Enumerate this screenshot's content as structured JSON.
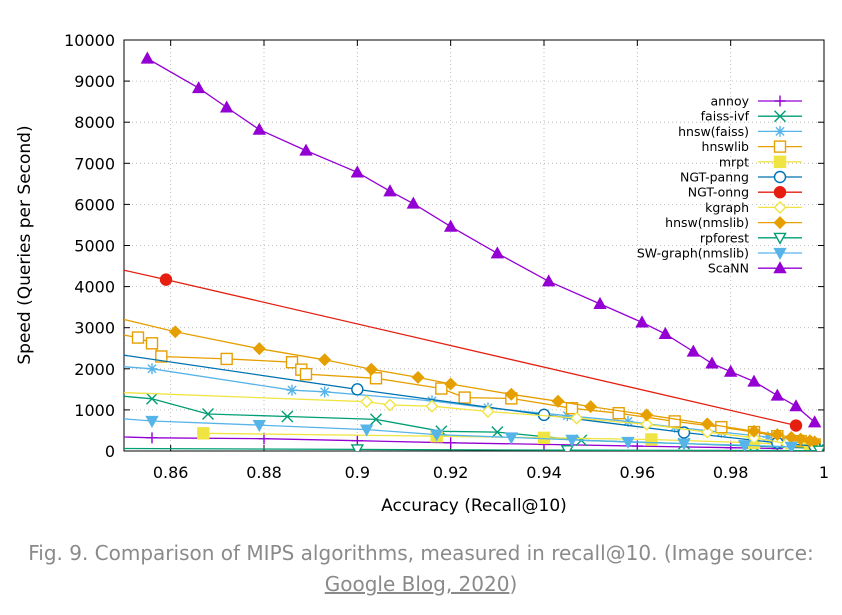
{
  "chart_data": {
    "type": "line",
    "xlabel": "Accuracy (Recall@10)",
    "ylabel": "Speed (Queries per Second)",
    "xlim": [
      0.85,
      1.0
    ],
    "ylim": [
      0,
      10000
    ],
    "xticks": [
      0.86,
      0.88,
      0.9,
      0.92,
      0.94,
      0.96,
      0.98,
      1.0
    ],
    "xtick_labels": [
      "0.86",
      "0.88",
      "0.9",
      "0.92",
      "0.94",
      "0.96",
      "0.98",
      "1"
    ],
    "yticks": [
      0,
      1000,
      2000,
      3000,
      4000,
      5000,
      6000,
      7000,
      8000,
      9000,
      10000
    ],
    "ytick_labels": [
      "0",
      "1000",
      "2000",
      "3000",
      "4000",
      "5000",
      "6000",
      "7000",
      "8000",
      "9000",
      "10000"
    ],
    "grid": true,
    "legend_position": "top-right",
    "series": [
      {
        "name": "annoy",
        "color": "#9400d3",
        "marker": "plus",
        "points": [
          [
            0.85,
            340
          ],
          [
            0.856,
            320
          ],
          [
            0.88,
            300
          ],
          [
            0.9,
            250
          ],
          [
            0.92,
            200
          ],
          [
            0.94,
            160
          ],
          [
            0.96,
            120
          ],
          [
            0.98,
            80
          ],
          [
            0.99,
            60
          ]
        ]
      },
      {
        "name": "faiss-ivf",
        "color": "#009e73",
        "marker": "x",
        "points": [
          [
            0.85,
            1330
          ],
          [
            0.856,
            1270
          ],
          [
            0.868,
            900
          ],
          [
            0.885,
            840
          ],
          [
            0.904,
            770
          ],
          [
            0.918,
            480
          ],
          [
            0.93,
            460
          ],
          [
            0.948,
            260
          ],
          [
            0.97,
            180
          ],
          [
            0.985,
            120
          ],
          [
            0.999,
            60
          ]
        ]
      },
      {
        "name": "hnsw(faiss)",
        "color": "#56b4e9",
        "marker": "star",
        "points": [
          [
            0.85,
            2050
          ],
          [
            0.856,
            2000
          ],
          [
            0.886,
            1480
          ],
          [
            0.893,
            1440
          ],
          [
            0.916,
            1220
          ],
          [
            0.928,
            1050
          ],
          [
            0.945,
            860
          ],
          [
            0.958,
            720
          ],
          [
            0.968,
            580
          ],
          [
            0.978,
            460
          ],
          [
            0.988,
            340
          ],
          [
            0.995,
            240
          ]
        ]
      },
      {
        "name": "hnswlib",
        "color": "#e69f00",
        "marker": "square",
        "points": [
          [
            0.85,
            2820
          ],
          [
            0.853,
            2760
          ],
          [
            0.856,
            2620
          ],
          [
            0.858,
            2300
          ],
          [
            0.872,
            2240
          ],
          [
            0.886,
            2160
          ],
          [
            0.888,
            1980
          ],
          [
            0.889,
            1870
          ],
          [
            0.904,
            1770
          ],
          [
            0.918,
            1520
          ],
          [
            0.923,
            1300
          ],
          [
            0.933,
            1280
          ],
          [
            0.946,
            1040
          ],
          [
            0.956,
            920
          ],
          [
            0.968,
            720
          ],
          [
            0.978,
            580
          ],
          [
            0.985,
            460
          ],
          [
            0.99,
            360
          ],
          [
            0.995,
            240
          ],
          [
            0.998,
            160
          ]
        ]
      },
      {
        "name": "mrpt",
        "color": "#f0e442",
        "marker": "square-filled",
        "points": [
          [
            0.867,
            430
          ],
          [
            0.917,
            360
          ],
          [
            0.94,
            320
          ],
          [
            0.963,
            280
          ],
          [
            0.985,
            200
          ],
          [
            0.997,
            120
          ]
        ]
      },
      {
        "name": "NGT-panng",
        "color": "#0072b2",
        "marker": "circle",
        "points": [
          [
            0.85,
            2330
          ],
          [
            0.9,
            1500
          ],
          [
            0.94,
            880
          ],
          [
            0.97,
            450
          ],
          [
            0.99,
            200
          ],
          [
            0.998,
            120
          ]
        ]
      },
      {
        "name": "NGT-onng",
        "color": "#e51e10",
        "marker": "circle-filled",
        "points": [
          [
            0.85,
            4400
          ],
          [
            0.859,
            4170
          ],
          [
            0.994,
            620
          ]
        ]
      },
      {
        "name": "kgraph",
        "color": "#f0e442",
        "marker": "diamond",
        "points": [
          [
            0.85,
            1420
          ],
          [
            0.902,
            1200
          ],
          [
            0.907,
            1120
          ],
          [
            0.916,
            1090
          ],
          [
            0.928,
            960
          ],
          [
            0.947,
            800
          ],
          [
            0.962,
            650
          ],
          [
            0.975,
            460
          ],
          [
            0.985,
            320
          ],
          [
            0.992,
            180
          ]
        ]
      },
      {
        "name": "hnsw(nmslib)",
        "color": "#e69f00",
        "marker": "diamond-filled",
        "points": [
          [
            0.85,
            3200
          ],
          [
            0.861,
            2900
          ],
          [
            0.879,
            2490
          ],
          [
            0.893,
            2220
          ],
          [
            0.903,
            1990
          ],
          [
            0.913,
            1790
          ],
          [
            0.92,
            1630
          ],
          [
            0.933,
            1380
          ],
          [
            0.943,
            1210
          ],
          [
            0.95,
            1080
          ],
          [
            0.962,
            880
          ],
          [
            0.975,
            660
          ],
          [
            0.985,
            480
          ],
          [
            0.99,
            400
          ],
          [
            0.993,
            330
          ],
          [
            0.995,
            290
          ],
          [
            0.997,
            250
          ],
          [
            0.998,
            220
          ]
        ]
      },
      {
        "name": "rpforest",
        "color": "#009e73",
        "marker": "triangle-down",
        "points": [
          [
            0.85,
            60
          ],
          [
            0.9,
            40
          ],
          [
            0.945,
            20
          ],
          [
            0.999,
            10
          ]
        ]
      },
      {
        "name": "SW-graph(nmslib)",
        "color": "#56b4e9",
        "marker": "triangle-down-filled",
        "points": [
          [
            0.85,
            780
          ],
          [
            0.856,
            730
          ],
          [
            0.879,
            630
          ],
          [
            0.902,
            520
          ],
          [
            0.917,
            400
          ],
          [
            0.933,
            330
          ],
          [
            0.946,
            270
          ],
          [
            0.958,
            220
          ],
          [
            0.97,
            180
          ],
          [
            0.983,
            140
          ],
          [
            0.993,
            100
          ]
        ]
      },
      {
        "name": "ScaNN",
        "color": "#9400d3",
        "marker": "triangle-up-filled",
        "points": [
          [
            0.855,
            9550
          ],
          [
            0.866,
            8830
          ],
          [
            0.872,
            8360
          ],
          [
            0.879,
            7820
          ],
          [
            0.889,
            7310
          ],
          [
            0.9,
            6780
          ],
          [
            0.907,
            6320
          ],
          [
            0.912,
            6020
          ],
          [
            0.92,
            5460
          ],
          [
            0.93,
            4810
          ],
          [
            0.941,
            4130
          ],
          [
            0.952,
            3580
          ],
          [
            0.961,
            3130
          ],
          [
            0.966,
            2850
          ],
          [
            0.972,
            2420
          ],
          [
            0.976,
            2130
          ],
          [
            0.98,
            1930
          ],
          [
            0.985,
            1690
          ],
          [
            0.99,
            1350
          ],
          [
            0.994,
            1090
          ],
          [
            0.998,
            700
          ]
        ]
      }
    ]
  },
  "caption": {
    "prefix": "Fig. 9. Comparison of MIPS algorithms, measured in recall@10. (Image source: ",
    "link": "Google Blog, 2020",
    "suffix": ")"
  }
}
